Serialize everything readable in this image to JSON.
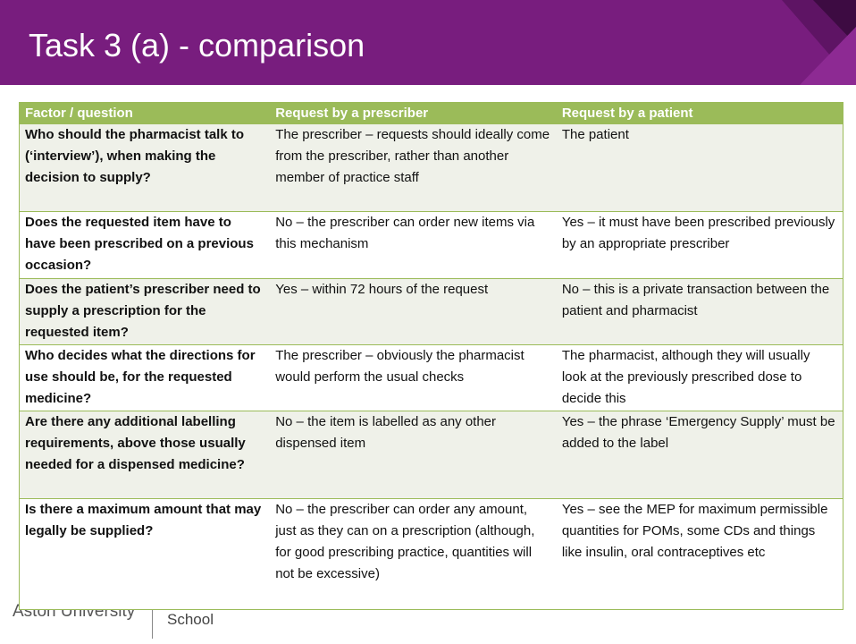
{
  "header": {
    "title": "Task 3 (a) - comparison"
  },
  "table": {
    "columns": [
      "Factor / question",
      "Request by a prescriber",
      "Request by a patient"
    ],
    "rows": [
      [
        "Who should the pharmacist talk to (‘interview’), when making the decision to supply?",
        "The prescriber – requests should ideally come from the prescriber, rather than another member of practice staff",
        "The patient"
      ],
      [
        "Does the requested item have to have been prescribed on a previous occasion?",
        "No – the prescriber can order new items via this mechanism",
        "Yes – it must have been prescribed previously by an appropriate prescriber"
      ],
      [
        "Does the patient’s prescriber need to supply a prescription for the requested item?",
        "Yes – within 72 hours of the request",
        "No – this is a private transaction between the patient and pharmacist"
      ],
      [
        "Who decides what the directions for use should be, for the requested medicine?",
        "The prescriber – obviously the pharmacist would perform the usual checks",
        "The pharmacist, although they will usually look at the previously prescribed dose to decide this"
      ],
      [
        "Are there any additional labelling requirements, above those usually needed for a dispensed medicine?",
        "No – the item is labelled as any other dispensed item",
        "Yes – the phrase ‘Emergency Supply’ must be added to the label"
      ],
      [
        "Is there a maximum amount that may legally be supplied?",
        "No – the prescriber can order any amount, just as they can on a prescription (although, for good prescribing practice, quantities will not be excessive)",
        "Yes – see the MEP for maximum permissible quantities for POMs, some CDs and things like insulin, oral contraceptives etc"
      ]
    ]
  },
  "footer": {
    "logo": "Aston University",
    "school": "School"
  }
}
